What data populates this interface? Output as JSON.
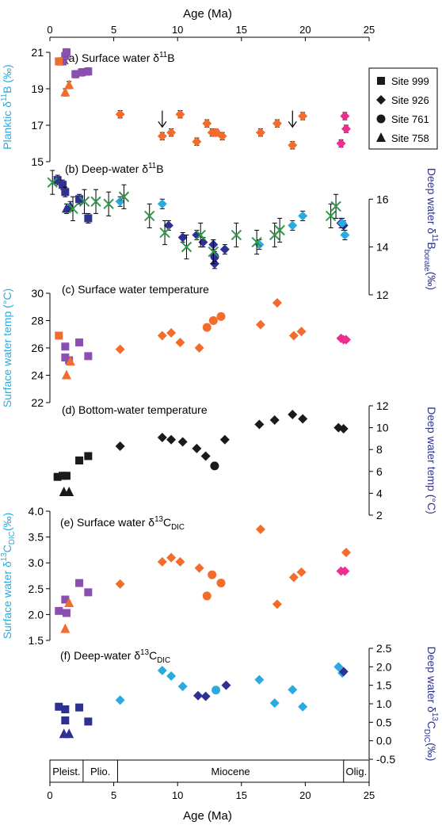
{
  "figure": {
    "x_axis_label": "Age (Ma)",
    "x_ticks": [
      0,
      5,
      10,
      15,
      20,
      25
    ],
    "epochs": [
      "Pleist.",
      "Plio.",
      "Miocene",
      "Olig."
    ],
    "epoch_bounds": [
      0,
      2.6,
      5.3,
      23,
      25
    ],
    "colors": {
      "orange": "#f26c2b",
      "purple": "#8a4fb0",
      "navy": "#2e3192",
      "cyan": "#29aae1",
      "pink": "#ec2f8e",
      "green": "#2e9a4a",
      "black": "#1a1a1a",
      "left_axis_label": "#29aae1",
      "right_axis_label": "#2e3192"
    }
  },
  "legend": {
    "items": [
      {
        "marker": "square",
        "label": "Site 999"
      },
      {
        "marker": "diamond",
        "label": "Site 926"
      },
      {
        "marker": "circle",
        "label": "Site 761"
      },
      {
        "marker": "triangle",
        "label": "Site 758"
      }
    ]
  },
  "chart_data": [
    {
      "id": "a",
      "type": "scatter",
      "title": "(a) Surface water δ11B",
      "ylabel": "Planktic δ11B (‰)",
      "ylim": [
        15,
        21
      ],
      "yticks": [
        15,
        17,
        19,
        21
      ],
      "axis": "left",
      "arrows_at": [
        8.8,
        19.0
      ],
      "series": [
        {
          "marker": "square",
          "color": "purple",
          "errors": true,
          "points": [
            [
              1.0,
              20.5
            ],
            [
              1.2,
              20.8
            ],
            [
              1.3,
              21.0
            ],
            [
              2.0,
              19.8
            ],
            [
              2.5,
              19.9
            ],
            [
              3.0,
              19.95
            ]
          ]
        },
        {
          "marker": "square",
          "color": "orange",
          "errors": true,
          "points": [
            [
              0.7,
              20.5
            ]
          ]
        },
        {
          "marker": "triangle",
          "color": "orange",
          "errors": true,
          "points": [
            [
              1.2,
              18.8
            ],
            [
              1.5,
              19.2
            ]
          ]
        },
        {
          "marker": "diamond",
          "color": "orange",
          "errors": true,
          "points": [
            [
              5.5,
              17.6
            ],
            [
              8.8,
              16.4
            ],
            [
              9.5,
              16.6
            ],
            [
              10.2,
              17.6
            ],
            [
              11.5,
              16.1
            ],
            [
              12.3,
              17.1
            ],
            [
              12.7,
              16.6
            ],
            [
              13.5,
              16.4
            ],
            [
              16.5,
              16.6
            ],
            [
              17.8,
              17.1
            ],
            [
              19.0,
              15.9
            ],
            [
              19.8,
              17.5
            ]
          ]
        },
        {
          "marker": "circle",
          "color": "orange",
          "errors": true,
          "points": [
            [
              13.0,
              16.6
            ]
          ]
        },
        {
          "marker": "diamond",
          "color": "pink",
          "errors": true,
          "points": [
            [
              22.8,
              16.0
            ],
            [
              23.1,
              17.5
            ],
            [
              23.2,
              16.8
            ]
          ]
        }
      ]
    },
    {
      "id": "b",
      "type": "scatter",
      "title": "(b) Deep-water δ11B",
      "ylabel": "Deep water δ11Bborate (‰)",
      "ylim": [
        12,
        17.5
      ],
      "yticks": [
        12,
        14,
        16
      ],
      "axis": "right",
      "series": [
        {
          "marker": "square",
          "color": "navy",
          "errors": true,
          "points": [
            [
              0.6,
              16.8
            ],
            [
              1.0,
              16.6
            ],
            [
              1.2,
              16.3
            ],
            [
              2.3,
              16.0
            ],
            [
              3.0,
              15.2
            ]
          ]
        },
        {
          "marker": "triangle",
          "color": "navy",
          "errors": true,
          "points": [
            [
              1.3,
              15.6
            ],
            [
              1.6,
              15.7
            ]
          ]
        },
        {
          "marker": "diamond",
          "color": "navy",
          "errors": true,
          "points": [
            [
              9.3,
              14.9
            ],
            [
              10.4,
              14.4
            ],
            [
              11.5,
              14.5
            ],
            [
              12.0,
              14.2
            ],
            [
              12.8,
              14.1
            ],
            [
              12.9,
              13.3
            ],
            [
              13.7,
              13.9
            ],
            [
              22.8,
              15.0
            ],
            [
              23.0,
              14.9
            ]
          ]
        },
        {
          "marker": "circle",
          "color": "navy",
          "errors": true,
          "points": [
            [
              12.9,
              13.6
            ]
          ]
        },
        {
          "marker": "diamond",
          "color": "cyan",
          "errors": true,
          "points": [
            [
              5.5,
              15.9
            ],
            [
              8.8,
              15.8
            ],
            [
              16.4,
              14.1
            ],
            [
              19.0,
              14.9
            ],
            [
              19.8,
              15.3
            ],
            [
              22.9,
              15.0
            ],
            [
              23.1,
              14.5
            ]
          ]
        },
        {
          "marker": "x",
          "color": "green",
          "errors": true,
          "points": [
            [
              0.2,
              16.7
            ],
            [
              1.8,
              15.6
            ],
            [
              2.7,
              15.9
            ],
            [
              3.6,
              15.9
            ],
            [
              4.6,
              15.8
            ],
            [
              5.8,
              16.1
            ],
            [
              7.8,
              15.3
            ],
            [
              9.0,
              14.6
            ],
            [
              10.7,
              14.0
            ],
            [
              11.8,
              14.5
            ],
            [
              12.8,
              13.8
            ],
            [
              14.6,
              14.5
            ],
            [
              16.2,
              14.2
            ],
            [
              17.6,
              14.5
            ],
            [
              18.0,
              14.7
            ],
            [
              22.0,
              15.3
            ],
            [
              22.4,
              15.7
            ]
          ]
        }
      ]
    },
    {
      "id": "c",
      "type": "scatter",
      "title": "(c) Surface water temperature",
      "ylabel": "Surface water temp (°C)",
      "ylim": [
        22,
        30
      ],
      "yticks": [
        22,
        24,
        26,
        28,
        30
      ],
      "axis": "left",
      "series": [
        {
          "marker": "square",
          "color": "orange",
          "points": [
            [
              0.7,
              26.9
            ]
          ]
        },
        {
          "marker": "square",
          "color": "purple",
          "points": [
            [
              1.2,
              26.1
            ],
            [
              1.2,
              25.3
            ],
            [
              1.5,
              25.1
            ],
            [
              2.3,
              26.4
            ],
            [
              3.0,
              25.4
            ]
          ]
        },
        {
          "marker": "triangle",
          "color": "orange",
          "points": [
            [
              1.3,
              24.0
            ],
            [
              1.6,
              25.0
            ]
          ]
        },
        {
          "marker": "diamond",
          "color": "orange",
          "points": [
            [
              5.5,
              25.9
            ],
            [
              8.8,
              26.9
            ],
            [
              9.5,
              27.1
            ],
            [
              10.2,
              26.4
            ],
            [
              11.7,
              26.0
            ],
            [
              16.5,
              27.7
            ],
            [
              17.8,
              29.3
            ],
            [
              19.1,
              26.9
            ],
            [
              19.7,
              27.2
            ]
          ]
        },
        {
          "marker": "circle",
          "color": "orange",
          "points": [
            [
              12.3,
              27.5
            ],
            [
              12.8,
              28.0
            ],
            [
              13.4,
              28.3
            ]
          ]
        },
        {
          "marker": "diamond",
          "color": "pink",
          "points": [
            [
              22.8,
              26.7
            ],
            [
              23.0,
              26.6
            ],
            [
              23.2,
              26.6
            ]
          ]
        }
      ]
    },
    {
      "id": "d",
      "type": "scatter",
      "title": "(d) Bottom-water temperature",
      "ylabel": "Deep water temp (°C)",
      "ylim": [
        2,
        12
      ],
      "yticks": [
        2,
        4,
        6,
        8,
        10,
        12
      ],
      "axis": "right",
      "series": [
        {
          "marker": "square",
          "color": "black",
          "points": [
            [
              0.6,
              5.5
            ],
            [
              1.0,
              5.6
            ],
            [
              1.3,
              5.6
            ],
            [
              2.3,
              7.0
            ],
            [
              3.0,
              7.4
            ]
          ]
        },
        {
          "marker": "triangle",
          "color": "black",
          "points": [
            [
              1.1,
              4.1
            ],
            [
              1.5,
              4.1
            ]
          ]
        },
        {
          "marker": "diamond",
          "color": "black",
          "points": [
            [
              5.5,
              8.3
            ],
            [
              8.8,
              9.1
            ],
            [
              9.5,
              8.9
            ],
            [
              10.4,
              8.7
            ],
            [
              11.5,
              8.1
            ],
            [
              12.2,
              7.4
            ],
            [
              13.7,
              8.9
            ],
            [
              16.4,
              10.3
            ],
            [
              17.6,
              10.7
            ],
            [
              19.0,
              11.2
            ],
            [
              19.8,
              10.8
            ],
            [
              22.6,
              10.0
            ],
            [
              23.0,
              9.9
            ]
          ]
        },
        {
          "marker": "circle",
          "color": "black",
          "points": [
            [
              12.9,
              6.5
            ]
          ]
        }
      ]
    },
    {
      "id": "e",
      "type": "scatter",
      "title": "(e) Surface water δ13CDIC",
      "ylabel": "Surface water δ13CDIC (‰)",
      "ylim": [
        1.5,
        4.0
      ],
      "yticks": [
        1.5,
        2.0,
        2.5,
        3.0,
        3.5,
        4.0
      ],
      "axis": "left",
      "series": [
        {
          "marker": "square",
          "color": "purple",
          "points": [
            [
              0.7,
              2.07
            ],
            [
              1.2,
              2.29
            ],
            [
              1.3,
              2.03
            ],
            [
              2.3,
              2.61
            ],
            [
              3.0,
              2.43
            ]
          ]
        },
        {
          "marker": "triangle",
          "color": "orange",
          "points": [
            [
              1.2,
              1.72
            ],
            [
              1.5,
              2.22
            ]
          ]
        },
        {
          "marker": "diamond",
          "color": "orange",
          "points": [
            [
              5.5,
              2.59
            ],
            [
              8.8,
              3.02
            ],
            [
              9.5,
              3.1
            ],
            [
              10.2,
              3.02
            ],
            [
              11.7,
              2.9
            ],
            [
              16.5,
              3.65
            ],
            [
              17.8,
              2.2
            ],
            [
              19.1,
              2.72
            ],
            [
              19.7,
              2.82
            ],
            [
              23.2,
              3.2
            ]
          ]
        },
        {
          "marker": "circle",
          "color": "orange",
          "points": [
            [
              12.3,
              2.36
            ],
            [
              12.7,
              2.77
            ],
            [
              13.4,
              2.61
            ]
          ]
        },
        {
          "marker": "diamond",
          "color": "pink",
          "points": [
            [
              22.8,
              2.84
            ],
            [
              23.1,
              2.84
            ]
          ]
        }
      ]
    },
    {
      "id": "f",
      "type": "scatter",
      "title": "(f) Deep-water δ13CDIC",
      "ylabel": "Deep water δ13CDIC (‰)",
      "ylim": [
        -0.5,
        2.5
      ],
      "yticks": [
        -0.5,
        0.0,
        0.5,
        1.0,
        1.5,
        2.0,
        2.5
      ],
      "axis": "right",
      "series": [
        {
          "marker": "square",
          "color": "navy",
          "points": [
            [
              0.7,
              0.92
            ],
            [
              1.2,
              0.85
            ],
            [
              1.2,
              0.55
            ],
            [
              2.3,
              0.9
            ],
            [
              3.0,
              0.52
            ]
          ]
        },
        {
          "marker": "triangle",
          "color": "navy",
          "points": [
            [
              1.1,
              0.18
            ],
            [
              1.5,
              0.18
            ]
          ]
        },
        {
          "marker": "diamond",
          "color": "cyan",
          "points": [
            [
              5.5,
              1.1
            ],
            [
              8.8,
              1.9
            ],
            [
              9.5,
              1.75
            ],
            [
              10.4,
              1.47
            ],
            [
              16.4,
              1.65
            ],
            [
              17.6,
              1.02
            ],
            [
              19.0,
              1.38
            ],
            [
              19.8,
              0.92
            ],
            [
              22.6,
              2.0
            ],
            [
              22.9,
              1.83
            ]
          ]
        },
        {
          "marker": "circle",
          "color": "cyan",
          "points": [
            [
              13.0,
              1.37
            ]
          ]
        },
        {
          "marker": "diamond",
          "color": "navy",
          "points": [
            [
              11.6,
              1.22
            ],
            [
              12.2,
              1.2
            ],
            [
              13.8,
              1.5
            ],
            [
              23.0,
              1.87
            ]
          ]
        }
      ]
    }
  ]
}
